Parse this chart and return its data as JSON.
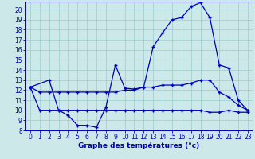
{
  "xlabel": "Graphe des températures (°c)",
  "bg_color": "#cce8e8",
  "line_color": "#0000bb",
  "xlim": [
    -0.5,
    23.5
  ],
  "ylim": [
    8,
    20.8
  ],
  "xticks": [
    0,
    1,
    2,
    3,
    4,
    5,
    6,
    7,
    8,
    9,
    10,
    11,
    12,
    13,
    14,
    15,
    16,
    17,
    18,
    19,
    20,
    21,
    22,
    23
  ],
  "yticks": [
    8,
    9,
    10,
    11,
    12,
    13,
    14,
    15,
    16,
    17,
    18,
    19,
    20
  ],
  "line1_x": [
    0,
    2,
    3,
    4,
    5,
    6,
    7,
    8,
    9,
    10,
    11,
    12,
    13,
    14,
    15,
    16,
    17,
    18,
    19,
    20,
    21,
    22,
    23
  ],
  "line1_y": [
    12.3,
    13.0,
    10.0,
    9.5,
    8.5,
    8.5,
    8.3,
    10.3,
    14.5,
    12.2,
    12.1,
    12.3,
    16.3,
    17.7,
    19.0,
    19.2,
    20.3,
    20.7,
    19.2,
    14.5,
    14.2,
    11.0,
    10.0
  ],
  "line2_x": [
    0,
    1,
    2,
    3,
    4,
    5,
    6,
    7,
    8,
    9,
    10,
    11,
    12,
    13,
    14,
    15,
    16,
    17,
    18,
    19,
    20,
    21,
    22,
    23
  ],
  "line2_y": [
    12.3,
    11.8,
    11.8,
    11.8,
    11.8,
    11.8,
    11.8,
    11.8,
    11.8,
    11.8,
    12.0,
    12.0,
    12.3,
    12.3,
    12.5,
    12.5,
    12.5,
    12.7,
    13.0,
    13.0,
    11.8,
    11.3,
    10.5,
    10.0
  ],
  "line3_x": [
    0,
    1,
    2,
    3,
    4,
    5,
    6,
    7,
    8,
    9,
    10,
    11,
    12,
    13,
    14,
    15,
    16,
    17,
    18,
    19,
    20,
    21,
    22,
    23
  ],
  "line3_y": [
    12.3,
    10.0,
    10.0,
    10.0,
    10.0,
    10.0,
    10.0,
    10.0,
    10.0,
    10.0,
    10.0,
    10.0,
    10.0,
    10.0,
    10.0,
    10.0,
    10.0,
    10.0,
    10.0,
    9.8,
    9.8,
    10.0,
    9.8,
    9.8
  ],
  "tick_fontsize": 5.5,
  "xlabel_fontsize": 6.5
}
